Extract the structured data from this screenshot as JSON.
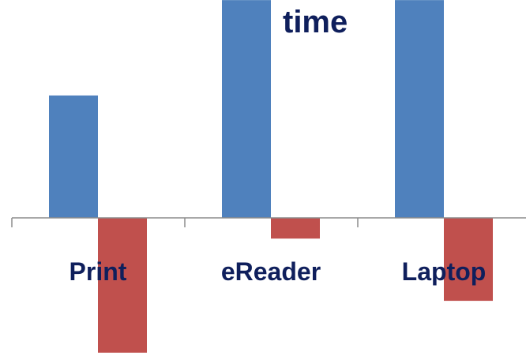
{
  "chart_data": {
    "type": "bar",
    "title": "time",
    "categories": [
      "Print",
      "eReader",
      "Laptop"
    ],
    "series": [
      {
        "color": "#4f81bd",
        "values": [
          5.9,
          10.5,
          10.5
        ]
      },
      {
        "color": "#c0504d",
        "values": [
          -6.5,
          -1.0,
          -4.0
        ]
      }
    ],
    "ylim": [
      -6.7,
      10.2
    ],
    "grid": false,
    "legend": "none"
  }
}
